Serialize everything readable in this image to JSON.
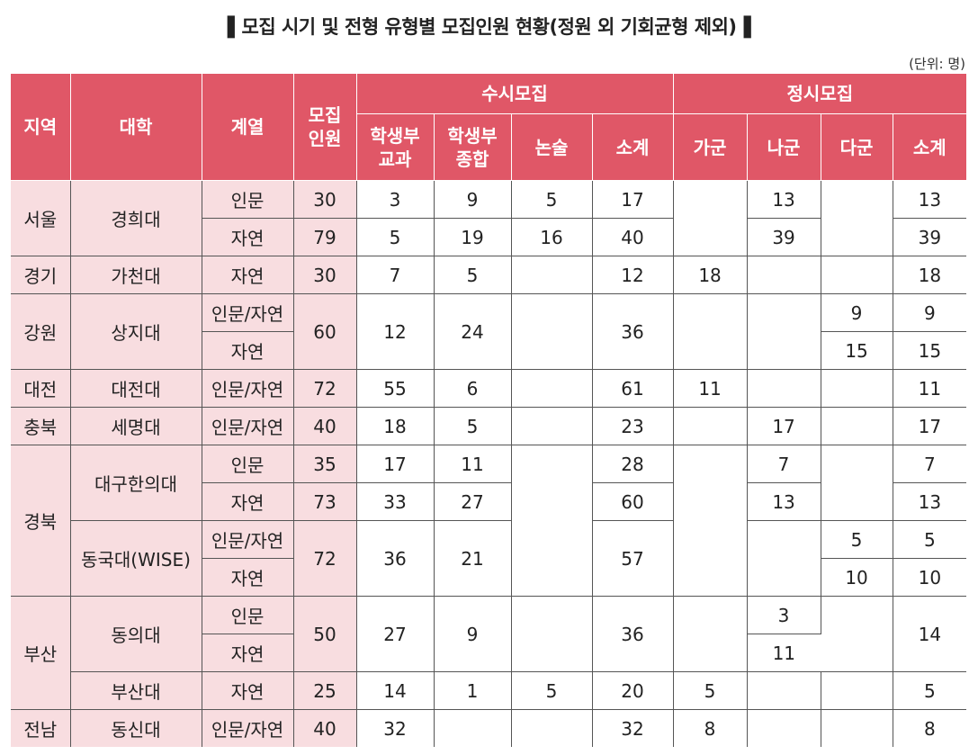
{
  "title": "▌모집 시기 및 전형 유형별 모집인원 현황(정원 외 기회균형 제외)▐",
  "unit": "(단위: 명)",
  "headers": {
    "region": "지역",
    "university": "대학",
    "track": "계열",
    "quota": "모집\n인원",
    "susi": "수시모집",
    "jeongsi": "정시모집",
    "susi_sub": [
      "학생부\n교과",
      "학생부\n종합",
      "논술",
      "소계"
    ],
    "jeongsi_sub": [
      "가군",
      "나군",
      "다군",
      "소계"
    ]
  },
  "rows": {
    "seoul": {
      "region": "서울",
      "univ": "경희대",
      "r1": {
        "track": "인문",
        "quota": "30",
        "s1": "3",
        "s2": "9",
        "s3": "5",
        "s4": "17",
        "j2": "13",
        "j4": "13"
      },
      "r2": {
        "track": "자연",
        "quota": "79",
        "s1": "5",
        "s2": "19",
        "s3": "16",
        "s4": "40",
        "j2": "39",
        "j4": "39"
      }
    },
    "gyeonggi": {
      "region": "경기",
      "univ": "가천대",
      "track": "자연",
      "quota": "30",
      "s1": "7",
      "s2": "5",
      "s4": "12",
      "j1": "18",
      "j4": "18"
    },
    "gangwon": {
      "region": "강원",
      "univ": "상지대",
      "track1": "인문/자연",
      "track2": "자연",
      "quota": "60",
      "s1": "12",
      "s2": "24",
      "s4": "36",
      "j3a": "9",
      "j4a": "9",
      "j3b": "15",
      "j4b": "15"
    },
    "daejeon": {
      "region": "대전",
      "univ": "대전대",
      "track": "인문/자연",
      "quota": "72",
      "s1": "55",
      "s2": "6",
      "s4": "61",
      "j1": "11",
      "j4": "11"
    },
    "chungbuk": {
      "region": "충북",
      "univ": "세명대",
      "track": "인문/자연",
      "quota": "40",
      "s1": "18",
      "s2": "5",
      "s4": "23",
      "j2": "17",
      "j4": "17"
    },
    "gyeongbuk": {
      "region": "경북",
      "daegu": {
        "univ": "대구한의대",
        "r1": {
          "track": "인문",
          "quota": "35",
          "s1": "17",
          "s2": "11",
          "s4": "28",
          "j2": "7",
          "j4": "7"
        },
        "r2": {
          "track": "자연",
          "quota": "73",
          "s1": "33",
          "s2": "27",
          "s4": "60",
          "j2": "13",
          "j4": "13"
        }
      },
      "dongguk": {
        "univ": "동국대(WISE)",
        "track1": "인문/자연",
        "track2": "자연",
        "quota": "72",
        "s1": "36",
        "s2": "21",
        "s4": "57",
        "j3a": "5",
        "j4a": "5",
        "j3b": "10",
        "j4b": "10"
      }
    },
    "busan": {
      "region": "부산",
      "dongeui": {
        "univ": "동의대",
        "track1": "인문",
        "track2": "자연",
        "quota": "50",
        "s1": "27",
        "s2": "9",
        "s4": "36",
        "j2a": "3",
        "j2b": "11",
        "j4": "14"
      },
      "busanu": {
        "univ": "부산대",
        "track": "자연",
        "quota": "25",
        "s1": "14",
        "s2": "1",
        "s3": "5",
        "s4": "20",
        "j1": "5",
        "j4": "5"
      }
    },
    "jeonnam": {
      "region": "전남",
      "univ": "동신대",
      "track": "인문/자연",
      "quota": "40",
      "s1": "32",
      "s4": "32",
      "j1": "8",
      "j4": "8"
    }
  },
  "colors": {
    "header_bg": "#e05767",
    "label_bg": "#f8dde0"
  }
}
